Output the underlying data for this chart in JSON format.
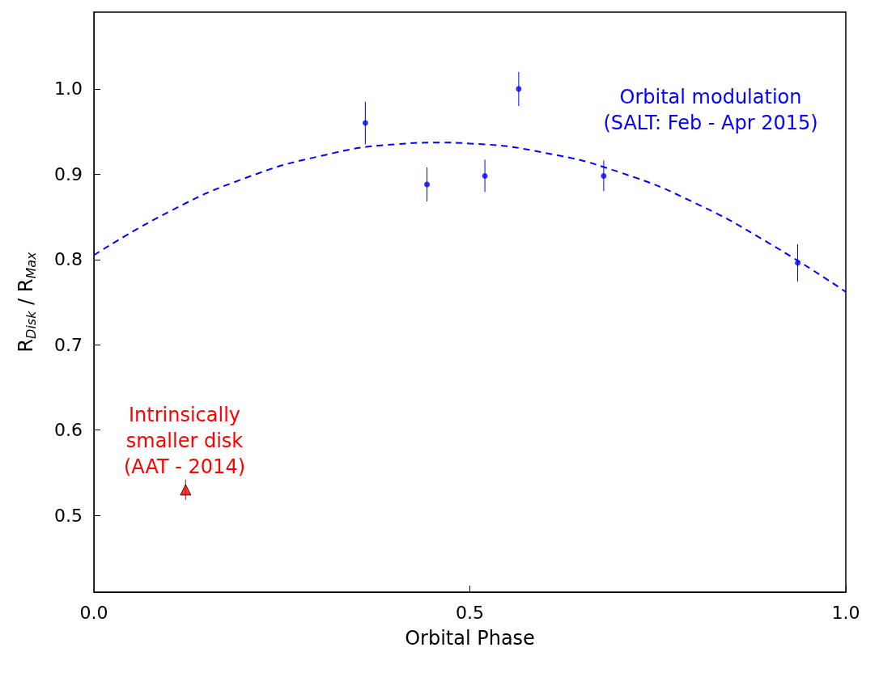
{
  "chart_data": {
    "type": "scatter",
    "xlabel": "Orbital Phase",
    "ylabel": "R$_{Disk}$ / R$_{Max}$",
    "xlim": [
      0,
      1
    ],
    "xticks": [
      {
        "value": 0,
        "label": "0.0"
      },
      0.5,
      {
        "value": 1,
        "label": "1.0"
      }
    ],
    "ylim": [
      0.41,
      1.09
    ],
    "yticks": [
      0.5,
      0.6,
      0.7,
      0.8,
      0.9,
      {
        "value": 1,
        "label": "1.0"
      }
    ],
    "grid": false,
    "series": [
      {
        "type": "line",
        "color": "#0000ff",
        "line_style": "dashed",
        "marker": "none",
        "x": [
          0,
          0.1,
          0.2,
          0.3,
          0.4,
          0.46,
          0.5,
          0.6,
          0.7,
          0.8,
          0.9,
          1.0
        ],
        "values": [
          0.805,
          0.856,
          0.895,
          0.921,
          0.935,
          0.937,
          0.936,
          0.925,
          0.902,
          0.866,
          0.818,
          0.762
        ]
      },
      {
        "color": "#0000ff",
        "marker": "circle",
        "x": [
          0.361,
          0.443,
          0.52,
          0.565,
          0.678,
          0.936
        ],
        "values": [
          0.96,
          0.888,
          0.898,
          1.0,
          0.898,
          0.796
        ],
        "errors": [
          0.025,
          0.02,
          0.019,
          0.02,
          0.018,
          0.022
        ]
      },
      {
        "color": "#ff0000",
        "marker": "triangle",
        "x": [
          0.122
        ],
        "values": [
          0.53
        ],
        "errors": [
          0.012
        ]
      }
    ],
    "annotations": [
      "Orbital modulation\n(SALT: Feb - Apr 2015)",
      "Intrinsically\nsmaller disk\n(AAT - 2014)"
    ]
  }
}
